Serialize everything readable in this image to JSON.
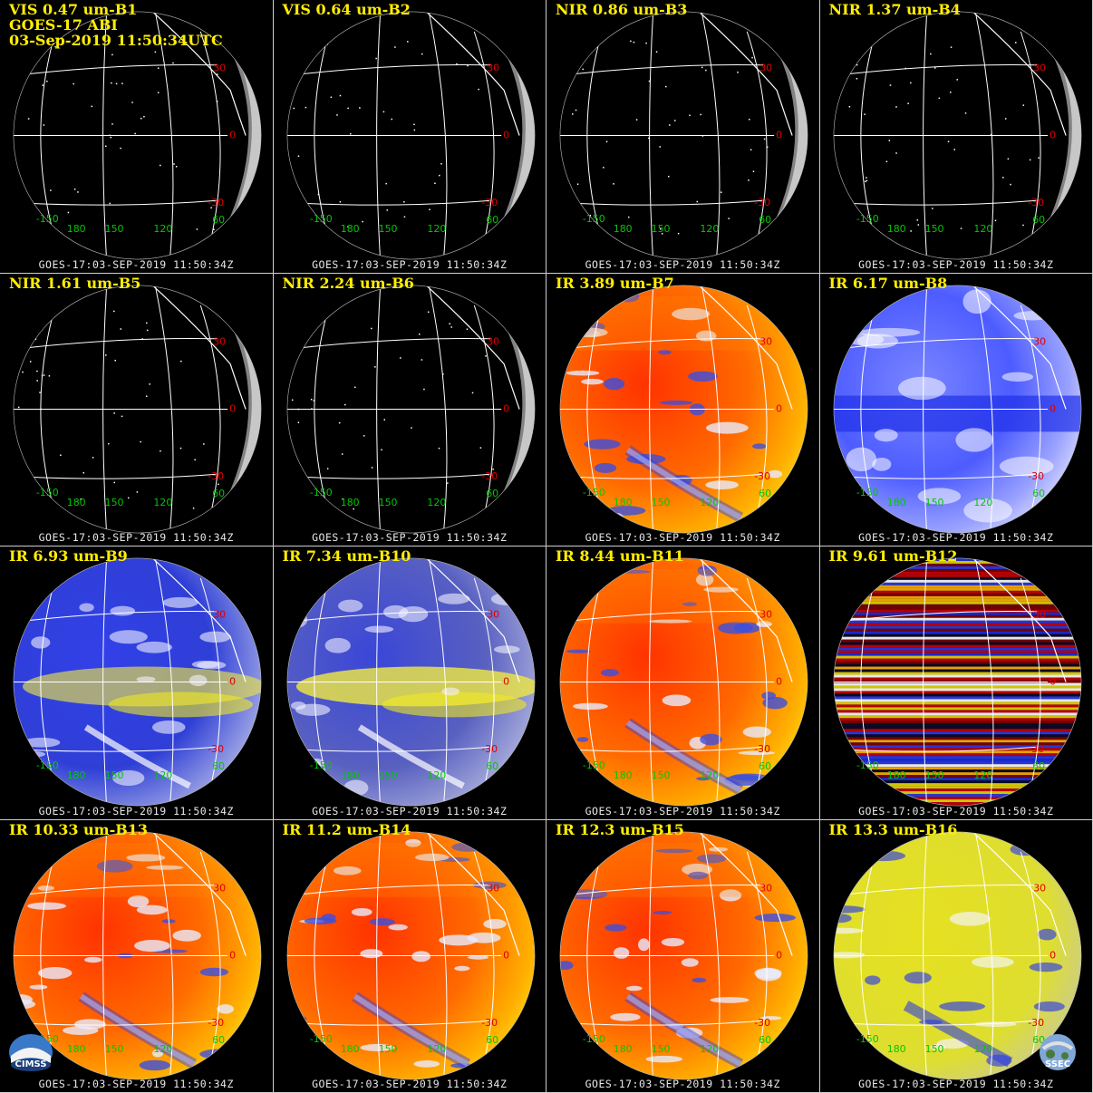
{
  "header_lines": [
    "GOES-17 ABI",
    "03-Sep-2019 11:50:34UTC"
  ],
  "footer_text": "GOES-17:03-SEP-2019 11:50:34Z",
  "lat_labels": {
    "north": "30",
    "equator": "0",
    "south": "-30"
  },
  "lon_labels": [
    "-150",
    "180",
    "150",
    "120",
    "60"
  ],
  "logos": {
    "left": "CIMSS",
    "right": "SSEC"
  },
  "colors": {
    "title": "#ffee00",
    "lat_label": "#e00000",
    "lon_label": "#00c800",
    "grid": "#ffffff"
  },
  "panels": [
    {
      "title": "VIS 0.47 um-B1",
      "style": "vis"
    },
    {
      "title": "VIS 0.64 um-B2",
      "style": "vis"
    },
    {
      "title": "NIR 0.86 um-B3",
      "style": "vis"
    },
    {
      "title": "NIR 1.37 um-B4",
      "style": "vis"
    },
    {
      "title": "NIR 1.61 um-B5",
      "style": "vis"
    },
    {
      "title": "NIR 2.24 um-B6",
      "style": "vis"
    },
    {
      "title": "IR 3.89 um-B7",
      "style": "warm"
    },
    {
      "title": "IR 6.17 um-B8",
      "style": "wv_pale"
    },
    {
      "title": "IR 6.93 um-B9",
      "style": "wv_blue"
    },
    {
      "title": "IR 7.34 um-B10",
      "style": "wv_yellow"
    },
    {
      "title": "IR 8.44 um-B11",
      "style": "warm"
    },
    {
      "title": "IR 9.61 um-B12",
      "style": "striped"
    },
    {
      "title": "IR 10.33 um-B13",
      "style": "warm"
    },
    {
      "title": "IR 11.2 um-B14",
      "style": "warm"
    },
    {
      "title": "IR 12.3 um-B15",
      "style": "warm"
    },
    {
      "title": "IR 13.3 um-B16",
      "style": "yellow"
    }
  ]
}
